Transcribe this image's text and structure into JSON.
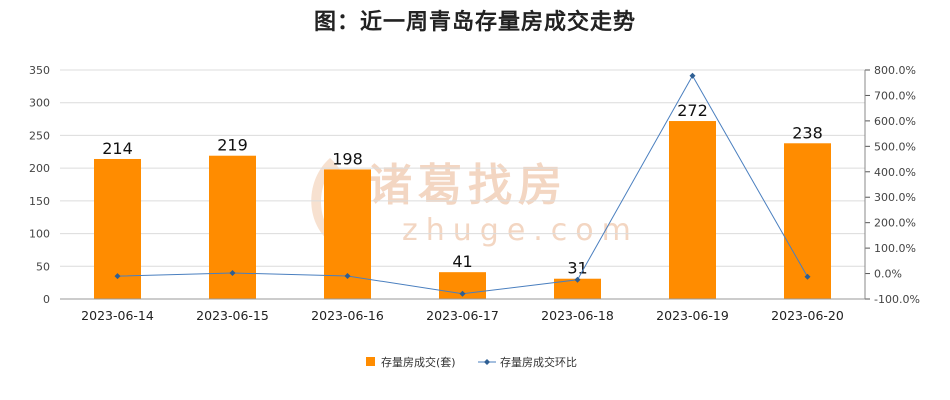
{
  "chart_data": {
    "type": "bar",
    "title": "图：近一周青岛存量房成交走势",
    "categories": [
      "2023-06-14",
      "2023-06-15",
      "2023-06-16",
      "2023-06-17",
      "2023-06-18",
      "2023-06-19",
      "2023-06-20"
    ],
    "series": [
      {
        "name": "存量房成交(套)",
        "type": "bar",
        "axis": "left",
        "color": "#ff8c00",
        "values": [
          214,
          219,
          198,
          41,
          31,
          272,
          238
        ]
      },
      {
        "name": "存量房成交环比",
        "type": "line",
        "axis": "right",
        "color": "#4a7fbf",
        "values": [
          -10,
          2.3,
          -9.6,
          -79.3,
          -24.4,
          777.4,
          -12.5
        ]
      }
    ],
    "y_left": {
      "min": 0,
      "max": 350,
      "ticks": [
        0,
        50,
        100,
        150,
        200,
        250,
        300,
        350
      ]
    },
    "y_right": {
      "min": -100,
      "max": 800,
      "ticks": [
        "-100.0%",
        "0.0%",
        "100.0%",
        "200.0%",
        "300.0%",
        "400.0%",
        "500.0%",
        "600.0%",
        "700.0%",
        "800.0%"
      ]
    },
    "grid": true,
    "legend_position": "bottom",
    "watermark": {
      "text": "诸葛找房",
      "subtext": "zhuge.com"
    }
  }
}
